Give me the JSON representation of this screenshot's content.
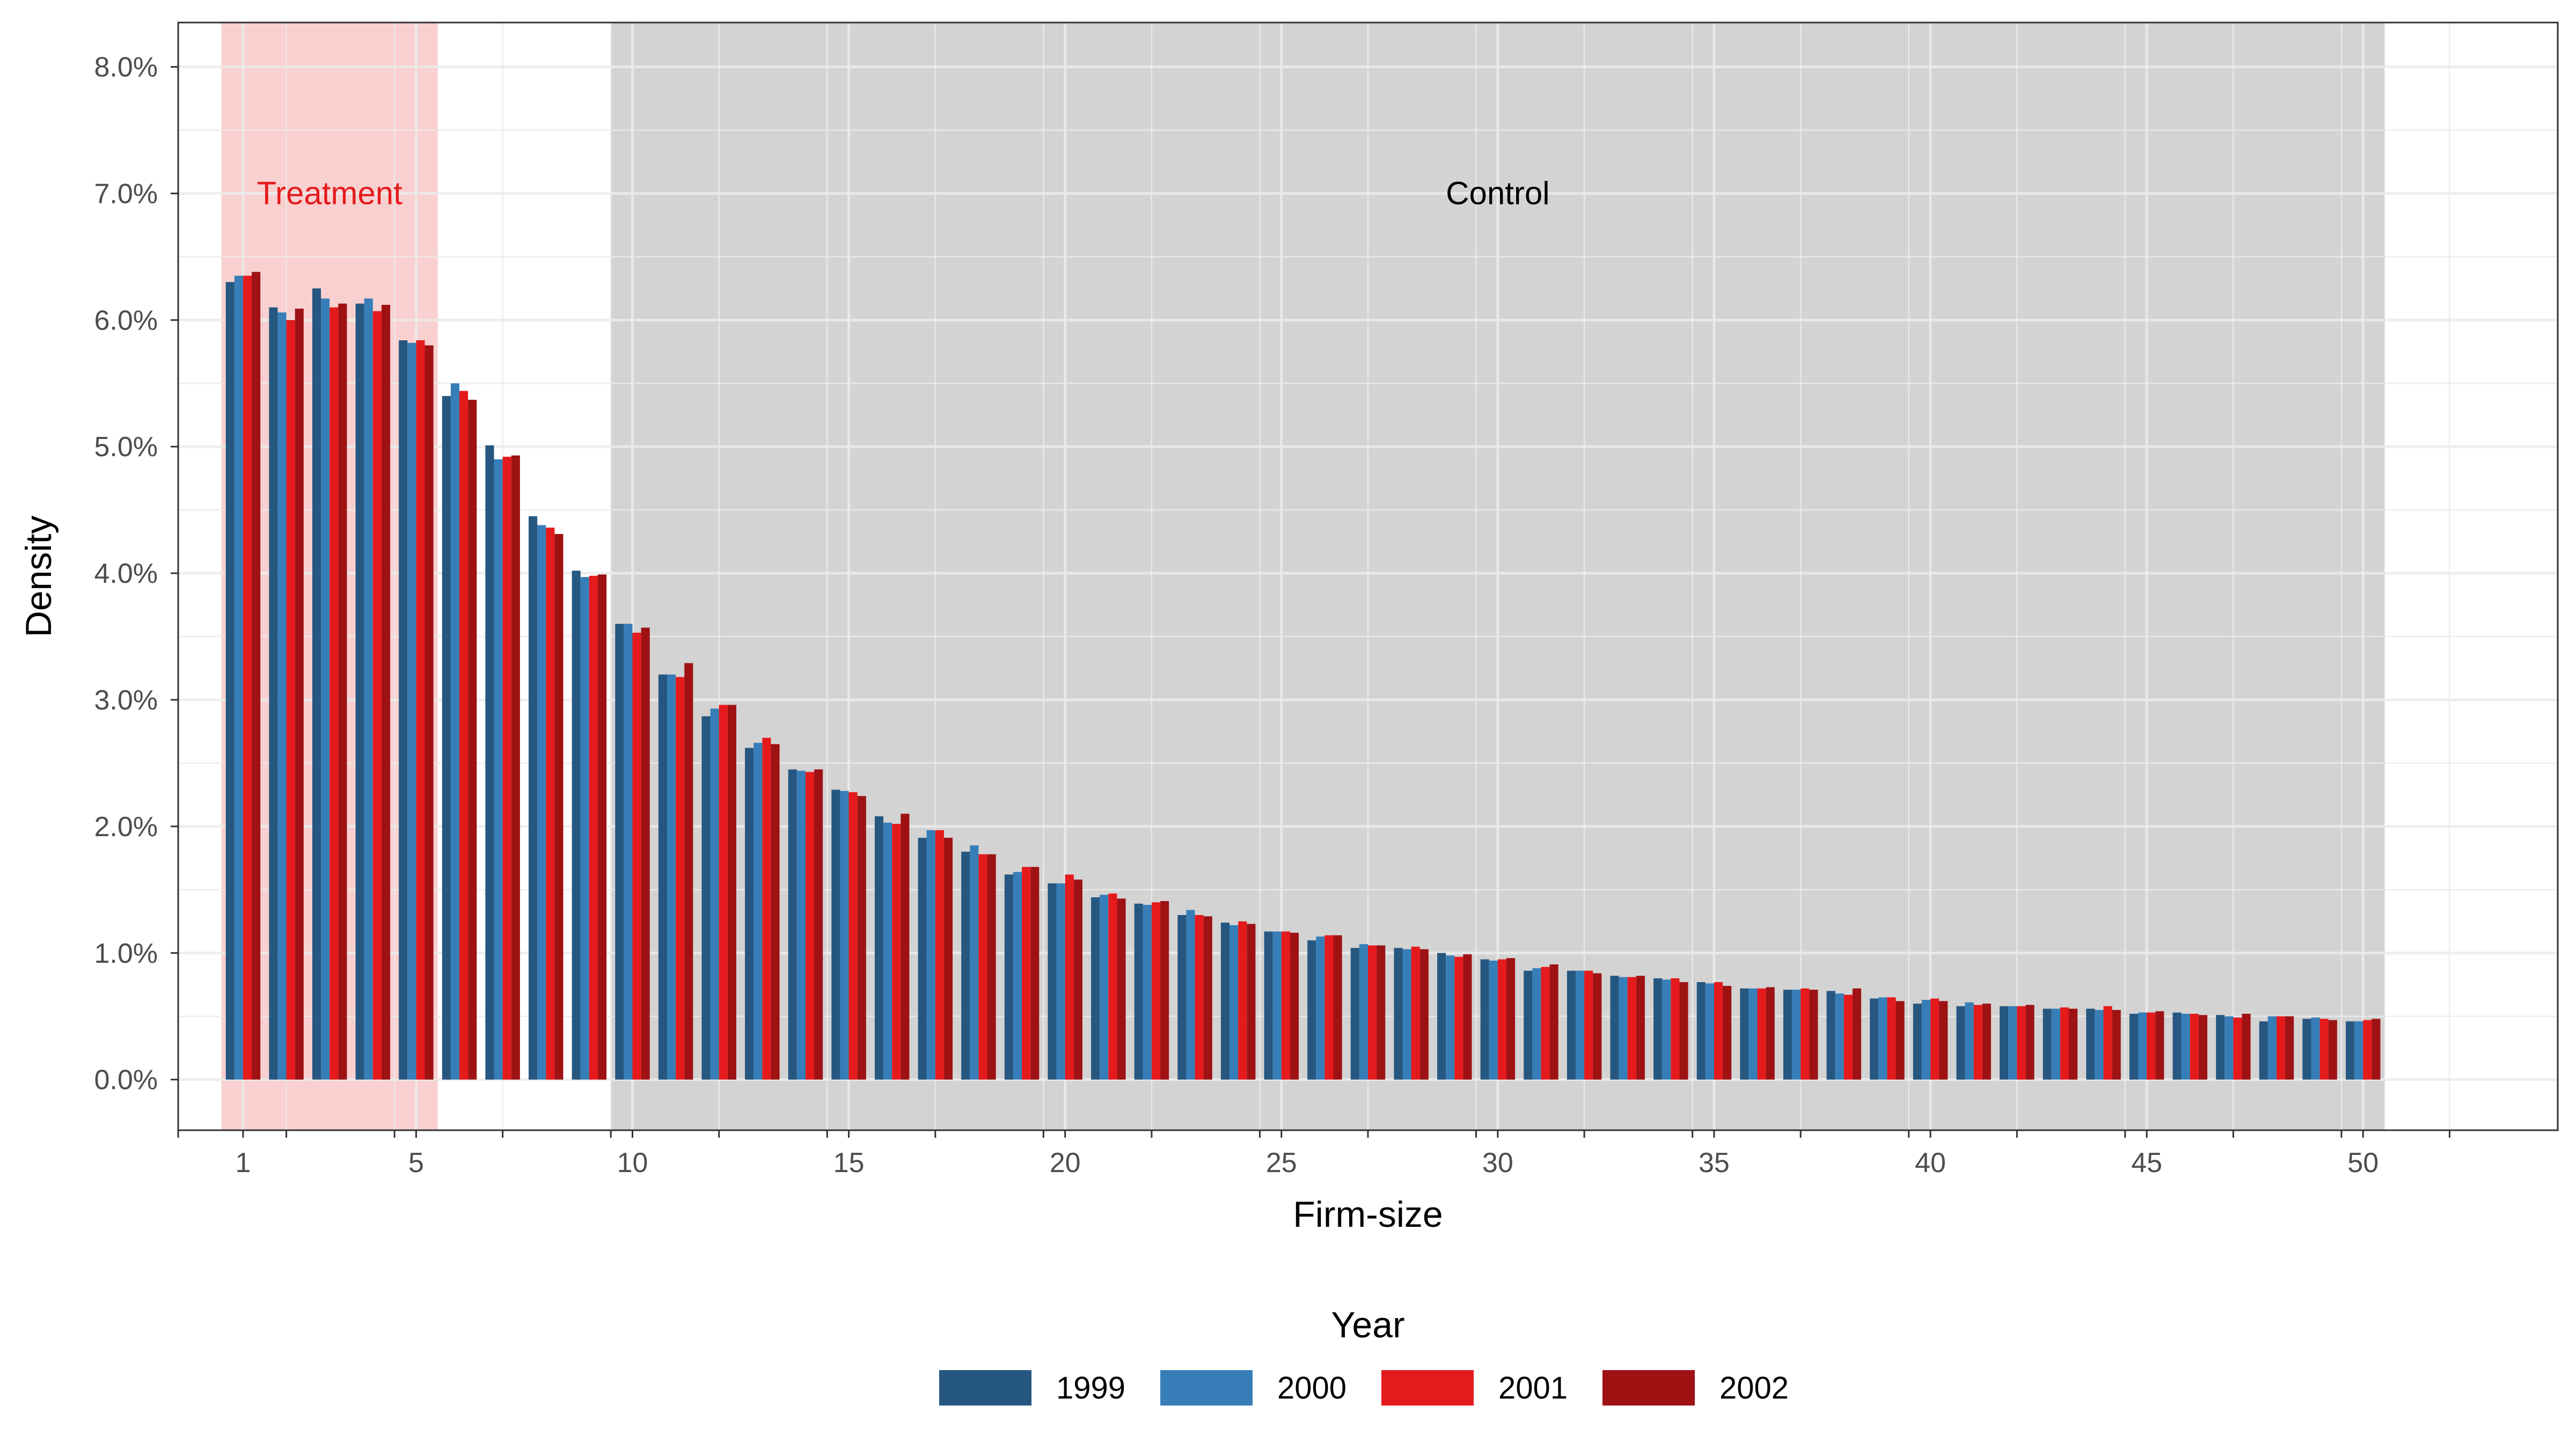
{
  "chart_data": {
    "type": "bar",
    "xlabel": "Firm-size",
    "ylabel": "Density",
    "xlim": [
      -0.5,
      54.5
    ],
    "ylim": [
      -0.4,
      8.35
    ],
    "y_unit": "%",
    "yticks": [
      0.0,
      1.0,
      2.0,
      3.0,
      4.0,
      5.0,
      6.0,
      7.0,
      8.0
    ],
    "ytick_labels": [
      "0.0%",
      "1.0%",
      "2.0%",
      "3.0%",
      "4.0%",
      "5.0%",
      "6.0%",
      "7.0%",
      "8.0%"
    ],
    "xticks": [
      1,
      5,
      10,
      15,
      20,
      25,
      30,
      35,
      40,
      45,
      50
    ],
    "xtick_labels": [
      "1",
      "5",
      "10",
      "15",
      "20",
      "25",
      "30",
      "35",
      "40",
      "45",
      "50"
    ],
    "grid": true,
    "regions": [
      {
        "label": "Treatment",
        "x_start": 0.5,
        "x_end": 5.5,
        "color": "#f9d0d0",
        "label_color": "#e41a1c"
      },
      {
        "label": "Control",
        "x_start": 9.5,
        "x_end": 50.5,
        "color": "#d3d3d3",
        "label_color": "#000000"
      }
    ],
    "region_label_y": 7.0,
    "categories": [
      1,
      2,
      3,
      4,
      5,
      6,
      7,
      8,
      9,
      10,
      11,
      12,
      13,
      14,
      15,
      16,
      17,
      18,
      19,
      20,
      21,
      22,
      23,
      24,
      25,
      26,
      27,
      28,
      29,
      30,
      31,
      32,
      33,
      34,
      35,
      36,
      37,
      38,
      39,
      40,
      41,
      42,
      43,
      44,
      45,
      46,
      47,
      48,
      49,
      50
    ],
    "legend": {
      "title": "Year",
      "position": "bottom"
    },
    "series": [
      {
        "name": "1999",
        "color": "#265780",
        "values": [
          6.3,
          6.1,
          6.25,
          6.13,
          5.84,
          5.4,
          5.01,
          4.45,
          4.02,
          3.6,
          3.2,
          2.87,
          2.62,
          2.45,
          2.29,
          2.08,
          1.91,
          1.8,
          1.62,
          1.55,
          1.44,
          1.39,
          1.3,
          1.24,
          1.17,
          1.1,
          1.04,
          1.04,
          1.0,
          0.95,
          0.86,
          0.86,
          0.82,
          0.8,
          0.77,
          0.72,
          0.71,
          0.7,
          0.64,
          0.6,
          0.58,
          0.58,
          0.56,
          0.56,
          0.52,
          0.53,
          0.51,
          0.46,
          0.48,
          0.46
        ]
      },
      {
        "name": "2000",
        "color": "#377eb8",
        "values": [
          6.35,
          6.06,
          6.17,
          6.17,
          5.82,
          5.5,
          4.9,
          4.38,
          3.97,
          3.6,
          3.2,
          2.93,
          2.66,
          2.44,
          2.28,
          2.03,
          1.97,
          1.85,
          1.64,
          1.55,
          1.46,
          1.38,
          1.34,
          1.22,
          1.17,
          1.13,
          1.07,
          1.03,
          0.98,
          0.94,
          0.88,
          0.86,
          0.81,
          0.79,
          0.76,
          0.72,
          0.71,
          0.68,
          0.65,
          0.63,
          0.61,
          0.58,
          0.56,
          0.55,
          0.53,
          0.52,
          0.5,
          0.5,
          0.49,
          0.46
        ]
      },
      {
        "name": "2001",
        "color": "#e41a1c",
        "values": [
          6.35,
          6.0,
          6.1,
          6.07,
          5.84,
          5.44,
          4.92,
          4.36,
          3.98,
          3.53,
          3.18,
          2.96,
          2.7,
          2.43,
          2.27,
          2.02,
          1.97,
          1.78,
          1.68,
          1.62,
          1.47,
          1.4,
          1.3,
          1.25,
          1.17,
          1.14,
          1.06,
          1.05,
          0.97,
          0.95,
          0.89,
          0.86,
          0.81,
          0.8,
          0.77,
          0.72,
          0.72,
          0.67,
          0.65,
          0.64,
          0.59,
          0.58,
          0.57,
          0.58,
          0.53,
          0.52,
          0.49,
          0.5,
          0.48,
          0.47
        ]
      },
      {
        "name": "2002",
        "color": "#9e1214",
        "values": [
          6.38,
          6.09,
          6.13,
          6.12,
          5.8,
          5.37,
          4.93,
          4.31,
          3.99,
          3.57,
          3.29,
          2.96,
          2.65,
          2.45,
          2.24,
          2.1,
          1.91,
          1.78,
          1.68,
          1.58,
          1.43,
          1.41,
          1.29,
          1.23,
          1.16,
          1.14,
          1.06,
          1.03,
          0.99,
          0.96,
          0.91,
          0.84,
          0.82,
          0.77,
          0.74,
          0.73,
          0.71,
          0.72,
          0.62,
          0.62,
          0.6,
          0.59,
          0.56,
          0.55,
          0.54,
          0.51,
          0.52,
          0.5,
          0.47,
          0.48
        ]
      }
    ]
  }
}
